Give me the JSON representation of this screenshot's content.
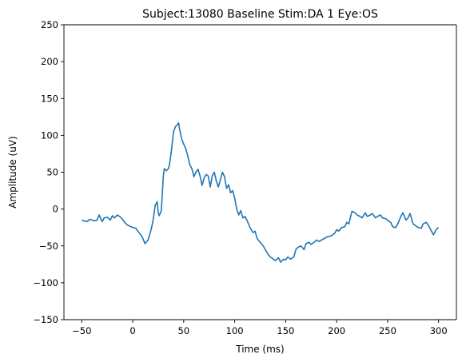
{
  "chart_data": {
    "type": "line",
    "title": "Subject:13080 Baseline Stim:DA 1 Eye:OS",
    "xlabel": "Time (ms)",
    "ylabel": "Amplitude (uV)",
    "xlim": [
      -67.5,
      317.5
    ],
    "ylim": [
      -150,
      250
    ],
    "xticks": [
      -50,
      0,
      50,
      100,
      150,
      200,
      250,
      300
    ],
    "yticks": [
      -150,
      -100,
      -50,
      0,
      50,
      100,
      150,
      200,
      250
    ],
    "grid": false,
    "line_color": "#1f77b4",
    "series": [
      {
        "x": [
          -50,
          -45,
          -42,
          -38,
          -35,
          -33,
          -30,
          -28,
          -25,
          -22,
          -20,
          -18,
          -15,
          -12,
          -10,
          -8,
          -5,
          0,
          3,
          5,
          8,
          10,
          12,
          15,
          18,
          20,
          22,
          24,
          25,
          26,
          28,
          29,
          30,
          31,
          33,
          35,
          36,
          38,
          40,
          42,
          44,
          45,
          46,
          48,
          50,
          52,
          54,
          56,
          58,
          60,
          62,
          64,
          66,
          68,
          70,
          72,
          74,
          76,
          78,
          80,
          82,
          84,
          86,
          88,
          90,
          92,
          94,
          96,
          98,
          100,
          102,
          104,
          106,
          108,
          110,
          112,
          115,
          118,
          120,
          122,
          125,
          128,
          130,
          133,
          135,
          138,
          140,
          143,
          145,
          148,
          150,
          152,
          155,
          158,
          160,
          162,
          165,
          168,
          170,
          173,
          175,
          178,
          180,
          183,
          185,
          188,
          190,
          193,
          195,
          198,
          200,
          202,
          205,
          208,
          210,
          212,
          215,
          218,
          220,
          223,
          225,
          228,
          230,
          233,
          235,
          238,
          240,
          243,
          245,
          248,
          250,
          253,
          255,
          258,
          260,
          263,
          265,
          268,
          270,
          272,
          275,
          278,
          280,
          283,
          285,
          288,
          290,
          293,
          295,
          298,
          300
        ],
        "y": [
          -15,
          -17,
          -14,
          -16,
          -15,
          -8,
          -17,
          -12,
          -11,
          -15,
          -9,
          -12,
          -8,
          -11,
          -14,
          -18,
          -22,
          -25,
          -26,
          -30,
          -35,
          -40,
          -47,
          -42,
          -28,
          -15,
          5,
          10,
          -5,
          -9,
          -2,
          20,
          45,
          55,
          52,
          55,
          60,
          80,
          105,
          112,
          115,
          117,
          108,
          95,
          88,
          82,
          72,
          60,
          55,
          44,
          50,
          54,
          45,
          32,
          42,
          47,
          45,
          30,
          45,
          50,
          38,
          30,
          40,
          50,
          44,
          28,
          33,
          22,
          25,
          15,
          0,
          -8,
          -2,
          -12,
          -10,
          -15,
          -25,
          -32,
          -30,
          -40,
          -45,
          -50,
          -55,
          -62,
          -65,
          -68,
          -70,
          -66,
          -72,
          -68,
          -69,
          -65,
          -68,
          -65,
          -55,
          -52,
          -50,
          -55,
          -47,
          -45,
          -48,
          -45,
          -42,
          -44,
          -42,
          -40,
          -38,
          -37,
          -36,
          -33,
          -28,
          -30,
          -25,
          -24,
          -18,
          -20,
          -3,
          -5,
          -8,
          -10,
          -12,
          -5,
          -10,
          -8,
          -6,
          -12,
          -10,
          -8,
          -12,
          -13,
          -15,
          -18,
          -24,
          -25,
          -20,
          -10,
          -5,
          -15,
          -12,
          -6,
          -20,
          -23,
          -25,
          -26,
          -20,
          -18,
          -22,
          -30,
          -35,
          -27,
          -25
        ]
      }
    ]
  }
}
